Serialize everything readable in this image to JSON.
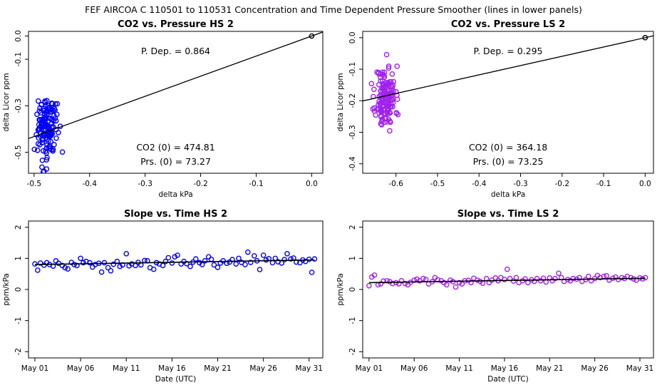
{
  "figure_title": "FEF   AIRCOA C   110501 to 110531   Concentration and Time Dependent Pressure Smoother (lines in lower panels)",
  "colors": {
    "hs": "#0000ff",
    "ls": "#a020f0",
    "line": "#000000",
    "frame": "#000000"
  },
  "chart_data": [
    {
      "id": "hs-top",
      "type": "scatter",
      "title": "CO2 vs. Pressure HS 2",
      "xlabel": "delta kPa",
      "ylabel": "delta Licor ppm",
      "xlim": [
        -0.51,
        0.02
      ],
      "ylim": [
        -0.59,
        0.02
      ],
      "xticks": [
        -0.5,
        -0.4,
        -0.3,
        -0.2,
        -0.1,
        0.0
      ],
      "xtick_labels": [
        "-0.5",
        "-0.4",
        "-0.3",
        "-0.2",
        "-0.1",
        "0.0"
      ],
      "yticks": [
        0.0,
        -0.1,
        -0.3,
        -0.5
      ],
      "ytick_labels": [
        "0.0",
        "-0.1",
        "-0.3",
        "-0.5"
      ],
      "fit_line": {
        "slope": 0.864,
        "intercept": 0.0
      },
      "origin_point": [
        0.0,
        0.0
      ],
      "cluster": {
        "x_center": -0.477,
        "x_spread": 0.009,
        "y_center": -0.4,
        "y_spread": 0.065,
        "n": 150,
        "seed": 7
      },
      "annotations": {
        "p_dep": "P. Dep. =  0.864",
        "co2_0": "CO2 (0) =  474.81",
        "prs_0": "Prs. (0) =  73.27"
      }
    },
    {
      "id": "ls-top",
      "type": "scatter",
      "title": "CO2 vs. Pressure LS 2",
      "xlabel": "delta kPa",
      "ylabel": "delta Licor ppm",
      "xlim": [
        -0.68,
        0.02
      ],
      "ylim": [
        -0.43,
        0.02
      ],
      "xticks": [
        -0.6,
        -0.5,
        -0.4,
        -0.3,
        -0.2,
        -0.1,
        0.0
      ],
      "xtick_labels": [
        "-0.6",
        "-0.5",
        "-0.4",
        "-0.3",
        "-0.2",
        "-0.1",
        "0.0"
      ],
      "yticks": [
        0.0,
        -0.1,
        -0.2,
        -0.3,
        -0.4
      ],
      "ytick_labels": [
        "0.0",
        "-0.1",
        "-0.2",
        "-0.3",
        "-0.4"
      ],
      "fit_line": {
        "slope": 0.295,
        "intercept": 0.0
      },
      "origin_point": [
        0.0,
        0.0
      ],
      "cluster": {
        "x_center": -0.625,
        "x_spread": 0.012,
        "y_center": -0.19,
        "y_spread": 0.05,
        "n": 150,
        "seed": 11
      },
      "annotations": {
        "p_dep": "P. Dep. =  0.295",
        "co2_0": "CO2 (0) =  364.18",
        "prs_0": "Prs. (0) =  73.25"
      }
    },
    {
      "id": "hs-bottom",
      "type": "scatter",
      "title": "Slope vs. Time HS 2",
      "xlabel": "Date (UTC)",
      "ylabel": "ppm/kPa",
      "xlim": [
        -0.7,
        31.5
      ],
      "ylim": [
        -2.2,
        2.2
      ],
      "xticks": [
        0,
        5,
        10,
        15,
        20,
        25,
        30
      ],
      "xtick_labels": [
        "May 01",
        "May 06",
        "May 11",
        "May 16",
        "May 21",
        "May 26",
        "May 31"
      ],
      "yticks": [
        -2,
        -1,
        0,
        1,
        2
      ],
      "ytick_labels": [
        "-2",
        "-1",
        "0",
        "1",
        "2"
      ],
      "points": [
        [
          0.0,
          0.82
        ],
        [
          0.3,
          0.62
        ],
        [
          0.6,
          0.85
        ],
        [
          1.0,
          0.78
        ],
        [
          1.3,
          0.86
        ],
        [
          1.6,
          0.8
        ],
        [
          2.0,
          0.75
        ],
        [
          2.3,
          0.92
        ],
        [
          2.6,
          0.84
        ],
        [
          3.0,
          0.77
        ],
        [
          3.3,
          0.7
        ],
        [
          3.6,
          0.66
        ],
        [
          4.0,
          0.87
        ],
        [
          4.3,
          0.8
        ],
        [
          4.6,
          0.77
        ],
        [
          5.0,
          1.0
        ],
        [
          5.3,
          0.86
        ],
        [
          5.6,
          0.9
        ],
        [
          6.0,
          0.86
        ],
        [
          6.3,
          0.72
        ],
        [
          6.6,
          0.8
        ],
        [
          7.0,
          0.84
        ],
        [
          7.3,
          0.56
        ],
        [
          7.6,
          0.86
        ],
        [
          8.0,
          0.7
        ],
        [
          8.3,
          0.6
        ],
        [
          8.6,
          0.81
        ],
        [
          9.0,
          0.9
        ],
        [
          9.3,
          0.74
        ],
        [
          9.6,
          0.79
        ],
        [
          10.0,
          1.15
        ],
        [
          10.3,
          0.76
        ],
        [
          10.6,
          0.82
        ],
        [
          11.0,
          0.77
        ],
        [
          11.3,
          0.87
        ],
        [
          11.6,
          0.79
        ],
        [
          12.0,
          0.93
        ],
        [
          12.3,
          0.92
        ],
        [
          12.6,
          0.7
        ],
        [
          13.0,
          0.65
        ],
        [
          13.3,
          0.86
        ],
        [
          13.6,
          0.82
        ],
        [
          14.0,
          0.77
        ],
        [
          14.3,
          0.9
        ],
        [
          14.6,
          1.02
        ],
        [
          15.0,
          0.85
        ],
        [
          15.3,
          1.05
        ],
        [
          15.6,
          1.1
        ],
        [
          16.0,
          0.82
        ],
        [
          16.3,
          0.9
        ],
        [
          16.6,
          0.83
        ],
        [
          17.0,
          0.74
        ],
        [
          17.3,
          0.88
        ],
        [
          17.6,
          0.98
        ],
        [
          18.0,
          0.86
        ],
        [
          18.3,
          0.8
        ],
        [
          18.6,
          0.92
        ],
        [
          19.0,
          1.05
        ],
        [
          19.3,
          0.97
        ],
        [
          19.6,
          0.79
        ],
        [
          20.0,
          0.71
        ],
        [
          20.3,
          0.85
        ],
        [
          20.6,
          0.92
        ],
        [
          21.0,
          0.84
        ],
        [
          21.3,
          0.88
        ],
        [
          21.6,
          0.96
        ],
        [
          22.0,
          0.82
        ],
        [
          22.3,
          1.0
        ],
        [
          22.6,
          0.87
        ],
        [
          23.0,
          0.8
        ],
        [
          23.3,
          1.2
        ],
        [
          23.6,
          0.87
        ],
        [
          24.0,
          1.08
        ],
        [
          24.3,
          0.92
        ],
        [
          24.6,
          0.64
        ],
        [
          25.0,
          1.1
        ],
        [
          25.3,
          0.95
        ],
        [
          25.6,
          0.99
        ],
        [
          26.0,
          0.86
        ],
        [
          26.3,
          1.0
        ],
        [
          26.6,
          0.89
        ],
        [
          27.0,
          0.85
        ],
        [
          27.3,
          0.96
        ],
        [
          27.6,
          1.15
        ],
        [
          28.0,
          0.98
        ],
        [
          28.3,
          1.01
        ],
        [
          28.6,
          0.88
        ],
        [
          29.0,
          0.86
        ],
        [
          29.3,
          0.95
        ],
        [
          29.6,
          0.9
        ],
        [
          30.0,
          0.97
        ],
        [
          30.3,
          0.55
        ],
        [
          30.6,
          0.98
        ]
      ],
      "fit_line": {
        "y_start": 0.8,
        "y_end": 0.95
      },
      "annotations": {}
    },
    {
      "id": "ls-bottom",
      "type": "scatter",
      "title": "Slope vs. Time LS 2",
      "xlabel": "Date (UTC)",
      "ylabel": "ppm/kPa",
      "xlim": [
        -0.7,
        31.5
      ],
      "ylim": [
        -2.2,
        2.2
      ],
      "xticks": [
        0,
        5,
        10,
        15,
        20,
        25,
        30
      ],
      "xtick_labels": [
        "May 01",
        "May 06",
        "May 11",
        "May 16",
        "May 21",
        "May 26",
        "May 31"
      ],
      "yticks": [
        -2,
        -1,
        0,
        1,
        2
      ],
      "ytick_labels": [
        "-2",
        "-1",
        "0",
        "1",
        "2"
      ],
      "points": [
        [
          0.0,
          0.12
        ],
        [
          0.3,
          0.4
        ],
        [
          0.6,
          0.46
        ],
        [
          1.0,
          0.15
        ],
        [
          1.3,
          0.18
        ],
        [
          1.6,
          0.27
        ],
        [
          2.0,
          0.28
        ],
        [
          2.3,
          0.25
        ],
        [
          2.6,
          0.19
        ],
        [
          3.0,
          0.22
        ],
        [
          3.3,
          0.18
        ],
        [
          3.6,
          0.28
        ],
        [
          4.0,
          0.19
        ],
        [
          4.3,
          0.15
        ],
        [
          4.6,
          0.23
        ],
        [
          5.0,
          0.3
        ],
        [
          5.3,
          0.33
        ],
        [
          5.6,
          0.28
        ],
        [
          6.0,
          0.35
        ],
        [
          6.3,
          0.32
        ],
        [
          6.6,
          0.18
        ],
        [
          7.0,
          0.25
        ],
        [
          7.3,
          0.38
        ],
        [
          7.6,
          0.31
        ],
        [
          8.0,
          0.28
        ],
        [
          8.3,
          0.22
        ],
        [
          8.6,
          0.15
        ],
        [
          9.0,
          0.3
        ],
        [
          9.3,
          0.25
        ],
        [
          9.6,
          0.08
        ],
        [
          10.0,
          0.22
        ],
        [
          10.3,
          0.18
        ],
        [
          10.6,
          0.28
        ],
        [
          11.0,
          0.29
        ],
        [
          11.3,
          0.22
        ],
        [
          11.6,
          0.36
        ],
        [
          12.0,
          0.3
        ],
        [
          12.3,
          0.26
        ],
        [
          12.6,
          0.2
        ],
        [
          13.0,
          0.35
        ],
        [
          13.3,
          0.22
        ],
        [
          13.6,
          0.3
        ],
        [
          14.0,
          0.37
        ],
        [
          14.3,
          0.28
        ],
        [
          14.6,
          0.38
        ],
        [
          15.0,
          0.32
        ],
        [
          15.3,
          0.65
        ],
        [
          15.6,
          0.35
        ],
        [
          16.0,
          0.27
        ],
        [
          16.3,
          0.38
        ],
        [
          16.6,
          0.22
        ],
        [
          17.0,
          0.28
        ],
        [
          17.3,
          0.34
        ],
        [
          17.6,
          0.22
        ],
        [
          18.0,
          0.31
        ],
        [
          18.3,
          0.26
        ],
        [
          18.6,
          0.35
        ],
        [
          19.0,
          0.28
        ],
        [
          19.3,
          0.36
        ],
        [
          19.6,
          0.24
        ],
        [
          20.0,
          0.37
        ],
        [
          20.3,
          0.28
        ],
        [
          20.6,
          0.35
        ],
        [
          21.0,
          0.52
        ],
        [
          21.3,
          0.38
        ],
        [
          21.6,
          0.26
        ],
        [
          22.0,
          0.32
        ],
        [
          22.3,
          0.28
        ],
        [
          22.6,
          0.35
        ],
        [
          23.0,
          0.33
        ],
        [
          23.3,
          0.38
        ],
        [
          23.6,
          0.26
        ],
        [
          24.0,
          0.32
        ],
        [
          24.3,
          0.42
        ],
        [
          24.6,
          0.28
        ],
        [
          25.0,
          0.35
        ],
        [
          25.3,
          0.45
        ],
        [
          25.6,
          0.38
        ],
        [
          26.0,
          0.42
        ],
        [
          26.3,
          0.44
        ],
        [
          26.6,
          0.3
        ],
        [
          27.0,
          0.36
        ],
        [
          27.3,
          0.4
        ],
        [
          27.6,
          0.32
        ],
        [
          28.0,
          0.38
        ],
        [
          28.3,
          0.35
        ],
        [
          28.6,
          0.42
        ],
        [
          29.0,
          0.38
        ],
        [
          29.3,
          0.34
        ],
        [
          29.6,
          0.3
        ],
        [
          30.0,
          0.37
        ],
        [
          30.3,
          0.34
        ],
        [
          30.6,
          0.38
        ]
      ],
      "fit_line": {
        "y_start": 0.22,
        "y_end": 0.36
      },
      "annotations": {}
    }
  ]
}
